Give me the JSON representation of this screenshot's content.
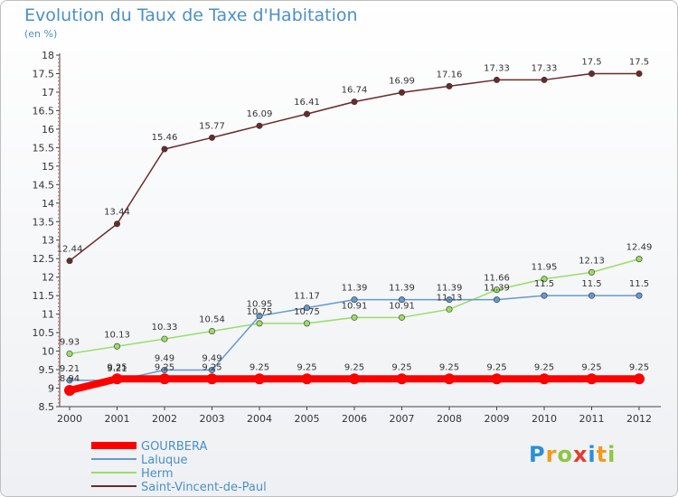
{
  "title": "Evolution du Taux de Taxe d'Habitation",
  "subtitle": "(en %)",
  "logo": {
    "letters": [
      "P",
      "r",
      "o",
      "x",
      "i",
      "t",
      "i"
    ],
    "colors": [
      "#2a8fd6",
      "#f29a1a",
      "#8cc63f",
      "#e63a2e",
      "#2a8fd6",
      "#f29a1a",
      "#8cc63f"
    ]
  },
  "chart_data": {
    "type": "line",
    "title": "Evolution du Taux de Taxe d'Habitation",
    "ylabel": "(en %)",
    "xlabel": "",
    "x": [
      "2000",
      "2001",
      "2002",
      "2003",
      "2004",
      "2005",
      "2006",
      "2007",
      "2008",
      "2009",
      "2010",
      "2011",
      "2012"
    ],
    "ylim": [
      8.5,
      18
    ],
    "yticks": [
      "8.5",
      "9",
      "9.5",
      "10",
      "10.5",
      "11",
      "11.5",
      "12",
      "12.5",
      "13",
      "13.5",
      "14",
      "14.5",
      "15",
      "15.5",
      "16",
      "16.5",
      "17",
      "17.5",
      "18"
    ],
    "grid": false,
    "legend_position": "bottom-left",
    "series": [
      {
        "name": "GOURBERA",
        "color": "#ff0000",
        "values": [
          8.94,
          9.25,
          9.25,
          9.25,
          9.25,
          9.25,
          9.25,
          9.25,
          9.25,
          9.25,
          9.25,
          9.25,
          9.25
        ],
        "labels": [
          "8.94",
          "9.25",
          "9.25",
          "9.25",
          "9.25",
          "9.25",
          "9.25",
          "9.25",
          "9.25",
          "9.25",
          "9.25",
          "9.25",
          "9.25"
        ]
      },
      {
        "name": "Laluque",
        "color": "#6699cc",
        "values": [
          9.21,
          9.21,
          9.49,
          9.49,
          10.95,
          11.17,
          11.39,
          11.39,
          11.39,
          11.39,
          11.5,
          11.5,
          11.5
        ],
        "labels": [
          "9.21",
          "9.21",
          "9.49",
          "9.49",
          "10.95",
          "11.17",
          "11.39",
          "11.39",
          "11.39",
          "11.39",
          "11.5",
          "11.5",
          "11.5"
        ]
      },
      {
        "name": "Herm",
        "color": "#99dd66",
        "values": [
          9.93,
          10.13,
          10.33,
          10.54,
          10.75,
          10.75,
          10.91,
          10.91,
          11.13,
          11.66,
          11.95,
          12.13,
          12.49
        ],
        "labels": [
          "9.93",
          "10.13",
          "10.33",
          "10.54",
          "10.75",
          "10.75",
          "10.91",
          "10.91",
          "11.13",
          "11.66",
          "11.95",
          "12.13",
          "12.49"
        ]
      },
      {
        "name": "Saint-Vincent-de-Paul",
        "color": "#6b2a2a",
        "values": [
          12.44,
          13.44,
          15.46,
          15.77,
          16.09,
          16.41,
          16.74,
          16.99,
          17.16,
          17.33,
          17.33,
          17.5,
          17.5
        ],
        "labels": [
          "12.44",
          "13.44",
          "15.46",
          "15.77",
          "16.09",
          "16.41",
          "16.74",
          "16.99",
          "17.16",
          "17.33",
          "17.33",
          "17.5",
          "17.5"
        ]
      }
    ]
  }
}
